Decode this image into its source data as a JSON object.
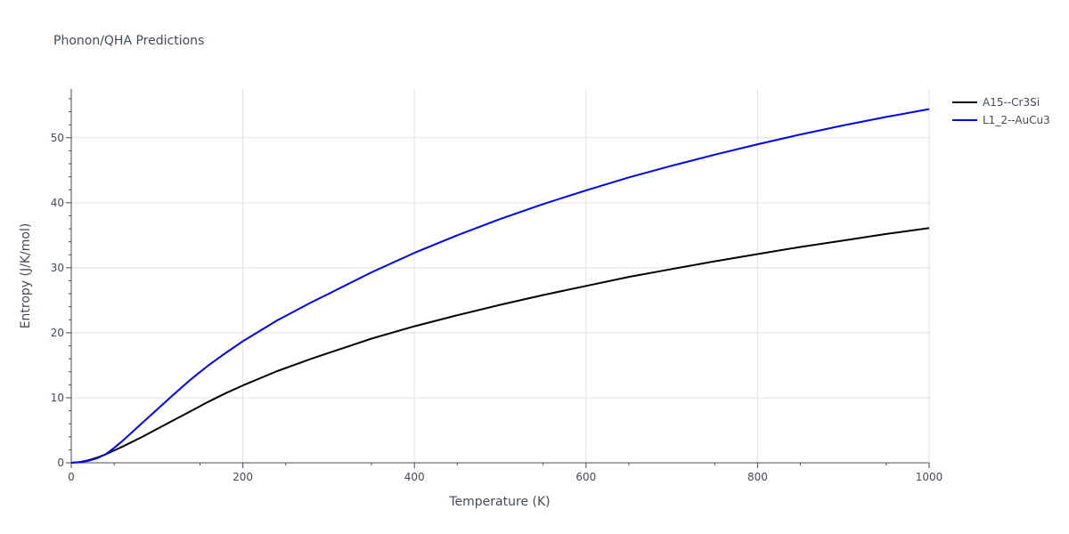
{
  "chart_data": {
    "type": "line",
    "title": "Phonon/QHA Predictions",
    "xlabel": "Temperature (K)",
    "ylabel": "Entropy (J/K/mol)",
    "xlim": [
      0,
      1000
    ],
    "ylim": [
      0,
      57.5
    ],
    "x_ticks": [
      "0",
      "200",
      "400",
      "600",
      "800",
      "1000"
    ],
    "y_ticks": [
      "0",
      "10",
      "20",
      "30",
      "40",
      "50"
    ],
    "grid": true,
    "legend_position": "top-right",
    "series": [
      {
        "name": "A15--Cr3Si",
        "color": "#000000",
        "x": [
          0,
          10,
          20,
          30,
          40,
          50,
          60,
          80,
          100,
          120,
          140,
          160,
          180,
          200,
          240,
          280,
          300,
          350,
          400,
          450,
          500,
          550,
          600,
          650,
          700,
          750,
          800,
          850,
          900,
          950,
          1000
        ],
        "y": [
          0,
          0.1,
          0.4,
          0.8,
          1.3,
          1.9,
          2.5,
          3.8,
          5.2,
          6.6,
          8.0,
          9.4,
          10.7,
          11.9,
          14.1,
          16.0,
          16.9,
          19.1,
          21.0,
          22.7,
          24.3,
          25.8,
          27.2,
          28.6,
          29.8,
          31.0,
          32.1,
          33.2,
          34.2,
          35.2,
          36.1
        ]
      },
      {
        "name": "L1_2--AuCu3",
        "color": "#0000ee",
        "x": [
          0,
          10,
          20,
          30,
          40,
          50,
          60,
          80,
          100,
          120,
          140,
          160,
          180,
          200,
          240,
          280,
          300,
          350,
          400,
          450,
          500,
          550,
          600,
          650,
          700,
          750,
          800,
          850,
          900,
          950,
          1000
        ],
        "y": [
          0,
          0.1,
          0.3,
          0.7,
          1.3,
          2.3,
          3.4,
          5.8,
          8.2,
          10.6,
          12.9,
          15.0,
          16.9,
          18.7,
          21.9,
          24.7,
          26.0,
          29.3,
          32.3,
          35.0,
          37.5,
          39.8,
          41.9,
          43.9,
          45.7,
          47.4,
          49.0,
          50.5,
          51.9,
          53.2,
          54.4
        ]
      }
    ]
  }
}
